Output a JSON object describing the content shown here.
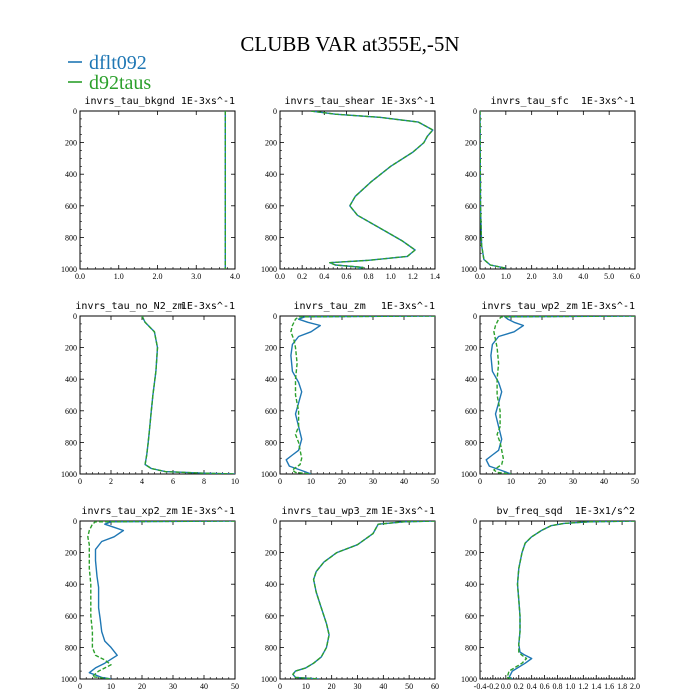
{
  "figure": {
    "title": "CLUBB VAR at355E,-5N",
    "legend": [
      {
        "name": "dflt092",
        "color": "#1f77b4"
      },
      {
        "name": "d92taus",
        "color": "#2ca02c"
      }
    ]
  },
  "chart_data": [
    {
      "type": "line",
      "title": "invrs_tau_bkgnd",
      "units": "1E-3xs^-1",
      "xlim": [
        0,
        4
      ],
      "ylim": [
        0,
        1000
      ],
      "y_inverted": true,
      "xticks": [
        "0.0",
        "1.0",
        "2.0",
        "3.0",
        "4.0"
      ],
      "yticks": [
        "0",
        "200",
        "400",
        "600",
        "800",
        "1000"
      ],
      "series": [
        {
          "name": "dflt092",
          "x": [
            3.75,
            3.75
          ],
          "y": [
            0,
            1000
          ]
        },
        {
          "name": "d92taus",
          "x": [
            3.75,
            3.75
          ],
          "y": [
            0,
            1000
          ]
        }
      ]
    },
    {
      "type": "line",
      "title": "invrs_tau_shear",
      "units": "1E-3xs^-1",
      "xlim": [
        0,
        1.4
      ],
      "ylim": [
        0,
        1000
      ],
      "y_inverted": true,
      "xticks": [
        "0.0",
        "0.2",
        "0.4",
        "0.6",
        "0.8",
        "1.0",
        "1.2",
        "1.4"
      ],
      "yticks": [
        "0",
        "200",
        "400",
        "600",
        "800",
        "1000"
      ],
      "series": [
        {
          "name": "dflt092",
          "x": [
            0.28,
            0.5,
            0.9,
            1.25,
            1.38,
            1.33,
            1.3,
            1.2,
            1.0,
            0.82,
            0.68,
            0.63,
            0.7,
            0.9,
            1.1,
            1.22,
            1.15,
            0.8,
            0.45,
            0.5,
            0.75,
            0.7
          ],
          "y": [
            0,
            20,
            40,
            70,
            120,
            160,
            200,
            260,
            350,
            450,
            540,
            600,
            660,
            740,
            820,
            880,
            920,
            945,
            960,
            975,
            990,
            1000
          ]
        },
        {
          "name": "d92taus",
          "x": [
            0.28,
            0.5,
            0.9,
            1.25,
            1.38,
            1.33,
            1.3,
            1.2,
            1.0,
            0.82,
            0.68,
            0.63,
            0.7,
            0.9,
            1.1,
            1.22,
            1.15,
            0.8,
            0.45,
            0.5,
            0.75,
            0.7
          ],
          "y": [
            0,
            20,
            40,
            70,
            120,
            160,
            200,
            260,
            350,
            450,
            540,
            600,
            660,
            740,
            820,
            880,
            920,
            945,
            960,
            975,
            990,
            1000
          ]
        }
      ]
    },
    {
      "type": "line",
      "title": "invrs_tau_sfc",
      "units": "1E-3xs^-1",
      "xlim": [
        0,
        6
      ],
      "ylim": [
        0,
        1000
      ],
      "y_inverted": true,
      "xticks": [
        "0.0",
        "1.0",
        "2.0",
        "3.0",
        "4.0",
        "5.0",
        "6.0"
      ],
      "yticks": [
        "0",
        "200",
        "400",
        "600",
        "800",
        "1000"
      ],
      "series": [
        {
          "name": "dflt092",
          "x": [
            0.0,
            0.02,
            0.06,
            0.15,
            0.4,
            1.0
          ],
          "y": [
            0,
            600,
            850,
            940,
            975,
            995
          ]
        },
        {
          "name": "d92taus",
          "x": [
            0.0,
            0.02,
            0.06,
            0.15,
            0.4,
            1.0
          ],
          "y": [
            0,
            600,
            850,
            940,
            975,
            995
          ]
        }
      ]
    },
    {
      "type": "line",
      "title": "invrs_tau_no_N2_zm",
      "units": "1E-3xs^-1",
      "xlim": [
        0,
        10
      ],
      "ylim": [
        0,
        1000
      ],
      "y_inverted": true,
      "xticks": [
        "0",
        "2",
        "4",
        "6",
        "8",
        "10"
      ],
      "yticks": [
        "0",
        "200",
        "400",
        "600",
        "800",
        "1000"
      ],
      "series": [
        {
          "name": "dflt092",
          "x": [
            4.0,
            4.2,
            4.8,
            5.0,
            4.9,
            4.7,
            4.6,
            4.5,
            4.4,
            4.3,
            4.2,
            4.6,
            5.5,
            8.0,
            10.0
          ],
          "y": [
            0,
            40,
            100,
            200,
            350,
            500,
            600,
            700,
            800,
            880,
            940,
            965,
            985,
            995,
            1000
          ]
        },
        {
          "name": "d92taus",
          "x": [
            4.0,
            4.2,
            4.8,
            5.0,
            4.9,
            4.7,
            4.6,
            4.5,
            4.4,
            4.3,
            4.2,
            4.6,
            5.5,
            8.0,
            10.0
          ],
          "y": [
            0,
            40,
            100,
            200,
            350,
            500,
            600,
            700,
            800,
            880,
            940,
            965,
            985,
            995,
            1000
          ]
        }
      ]
    },
    {
      "type": "line",
      "title": "invrs_tau_zm",
      "units": "1E-3xs^-1",
      "xlim": [
        0,
        50
      ],
      "ylim": [
        0,
        1000
      ],
      "y_inverted": true,
      "xticks": [
        "0",
        "10",
        "20",
        "30",
        "40",
        "50"
      ],
      "yticks": [
        "0",
        "200",
        "400",
        "600",
        "800",
        "1000"
      ],
      "series": [
        {
          "name": "dflt092",
          "x": [
            50,
            8,
            6,
            9,
            13,
            10,
            6,
            4,
            3.5,
            4,
            6,
            7,
            6,
            5,
            6,
            7,
            6,
            4,
            2,
            3,
            8,
            10
          ],
          "y": [
            0,
            5,
            20,
            40,
            60,
            100,
            130,
            180,
            250,
            350,
            420,
            480,
            550,
            620,
            700,
            780,
            850,
            880,
            910,
            950,
            985,
            1000
          ]
        },
        {
          "name": "d92taus",
          "x": [
            50,
            6,
            5,
            4,
            3.5,
            4.5,
            5,
            5.5,
            5,
            5,
            6,
            6,
            5,
            6,
            6.5,
            7,
            6.5,
            5,
            4,
            5,
            10
          ],
          "y": [
            0,
            5,
            20,
            60,
            100,
            150,
            200,
            300,
            400,
            500,
            600,
            700,
            750,
            800,
            850,
            900,
            940,
            960,
            975,
            990,
            1000
          ]
        }
      ]
    },
    {
      "type": "line",
      "title": "invrs_tau_wp2_zm",
      "units": "1E-3xs^-1",
      "xlim": [
        0,
        50
      ],
      "ylim": [
        0,
        1000
      ],
      "y_inverted": true,
      "xticks": [
        "0",
        "10",
        "20",
        "30",
        "40",
        "50"
      ],
      "yticks": [
        "0",
        "200",
        "400",
        "600",
        "800",
        "1000"
      ],
      "series": [
        {
          "name": "dflt092",
          "x": [
            50,
            8,
            9,
            11,
            14,
            11,
            6,
            4,
            3.5,
            4,
            6,
            7,
            6,
            5,
            6,
            7,
            6,
            4,
            2,
            3,
            8,
            10
          ],
          "y": [
            0,
            5,
            20,
            40,
            60,
            100,
            130,
            180,
            250,
            350,
            420,
            480,
            550,
            620,
            700,
            780,
            850,
            880,
            910,
            950,
            985,
            1000
          ]
        },
        {
          "name": "d92taus",
          "x": [
            50,
            7,
            6,
            5,
            4.5,
            5,
            5.5,
            6,
            5.5,
            5.5,
            6.5,
            6.5,
            5.5,
            6.5,
            7,
            7.5,
            7,
            5.5,
            4.5,
            5.5,
            10
          ],
          "y": [
            0,
            5,
            20,
            60,
            100,
            150,
            200,
            300,
            400,
            500,
            600,
            700,
            750,
            800,
            850,
            900,
            940,
            960,
            975,
            990,
            1000
          ]
        }
      ]
    },
    {
      "type": "line",
      "title": "invrs_tau_xp2_zm",
      "units": "1E-3xs^-1",
      "xlim": [
        0,
        50
      ],
      "ylim": [
        0,
        1000
      ],
      "y_inverted": true,
      "xticks": [
        "0",
        "10",
        "20",
        "30",
        "40",
        "50"
      ],
      "yticks": [
        "0",
        "200",
        "400",
        "600",
        "800",
        "1000"
      ],
      "series": [
        {
          "name": "dflt092",
          "x": [
            50,
            10,
            8,
            11,
            14,
            11,
            7,
            5,
            5,
            5.5,
            6,
            6,
            6,
            6.5,
            7,
            8,
            10,
            12,
            8,
            5,
            3,
            7,
            10
          ],
          "y": [
            0,
            5,
            20,
            40,
            60,
            100,
            130,
            180,
            250,
            350,
            420,
            480,
            550,
            620,
            700,
            760,
            800,
            850,
            900,
            930,
            960,
            990,
            1000
          ]
        },
        {
          "name": "d92taus",
          "x": [
            50,
            5,
            4,
            3,
            2.5,
            3,
            3,
            3,
            3.5,
            3.5,
            3.5,
            4,
            4,
            5,
            8,
            10,
            6,
            4,
            10
          ],
          "y": [
            0,
            5,
            20,
            60,
            100,
            150,
            200,
            300,
            400,
            500,
            600,
            700,
            800,
            850,
            880,
            910,
            950,
            985,
            1000
          ]
        }
      ]
    },
    {
      "type": "line",
      "title": "invrs_tau_wp3_zm",
      "units": "1E-3xs^-1",
      "xlim": [
        0,
        60
      ],
      "ylim": [
        0,
        1000
      ],
      "y_inverted": true,
      "xticks": [
        "0",
        "10",
        "20",
        "30",
        "40",
        "50",
        "60"
      ],
      "yticks": [
        "0",
        "200",
        "400",
        "600",
        "800",
        "1000"
      ],
      "series": [
        {
          "name": "dflt092",
          "x": [
            60,
            48,
            38,
            36,
            30,
            22,
            17,
            14,
            13,
            14,
            16,
            18,
            19,
            18,
            16,
            13,
            10,
            6,
            5,
            6,
            15
          ],
          "y": [
            0,
            5,
            20,
            80,
            150,
            200,
            260,
            320,
            370,
            450,
            550,
            650,
            720,
            800,
            860,
            900,
            930,
            950,
            970,
            990,
            1000
          ]
        },
        {
          "name": "d92taus",
          "x": [
            60,
            48,
            38,
            36,
            30,
            22,
            17,
            14,
            13,
            14,
            16,
            18,
            19,
            18,
            16,
            13,
            10,
            6,
            5,
            6,
            15
          ],
          "y": [
            0,
            5,
            20,
            80,
            150,
            200,
            260,
            320,
            370,
            450,
            550,
            650,
            720,
            800,
            860,
            900,
            930,
            950,
            970,
            990,
            1000
          ]
        }
      ]
    },
    {
      "type": "line",
      "title": "bv_freq_sqd",
      "units": "1E-3x1/s^2",
      "xlim": [
        -0.4,
        2.0
      ],
      "ylim": [
        0,
        1000
      ],
      "y_inverted": true,
      "xticks": [
        "-0.4",
        "-0.2",
        "0.0",
        "0.2",
        "0.4",
        "0.6",
        "0.8",
        "1.0",
        "1.2",
        "1.4",
        "1.6",
        "1.8",
        "2.0"
      ],
      "yticks": [
        "0",
        "200",
        "400",
        "600",
        "800",
        "1000"
      ],
      "series": [
        {
          "name": "dflt092",
          "x": [
            2.0,
            1.3,
            0.9,
            0.7,
            0.55,
            0.4,
            0.3,
            0.25,
            0.2,
            0.18,
            0.2,
            0.22,
            0.22,
            0.2,
            0.22,
            0.3,
            0.4,
            0.3,
            0.1,
            0.05,
            0.1
          ],
          "y": [
            0,
            5,
            15,
            30,
            60,
            100,
            140,
            200,
            300,
            400,
            500,
            600,
            700,
            780,
            830,
            850,
            870,
            900,
            950,
            990,
            1000
          ]
        },
        {
          "name": "d92taus",
          "x": [
            2.0,
            1.3,
            0.9,
            0.7,
            0.55,
            0.4,
            0.3,
            0.25,
            0.2,
            0.18,
            0.2,
            0.22,
            0.22,
            0.2,
            0.2,
            0.25,
            0.32,
            0.25,
            0.05,
            0.02,
            0.1
          ],
          "y": [
            0,
            5,
            15,
            30,
            60,
            100,
            140,
            200,
            300,
            400,
            500,
            600,
            700,
            780,
            830,
            850,
            870,
            900,
            950,
            990,
            1000
          ]
        }
      ]
    }
  ]
}
